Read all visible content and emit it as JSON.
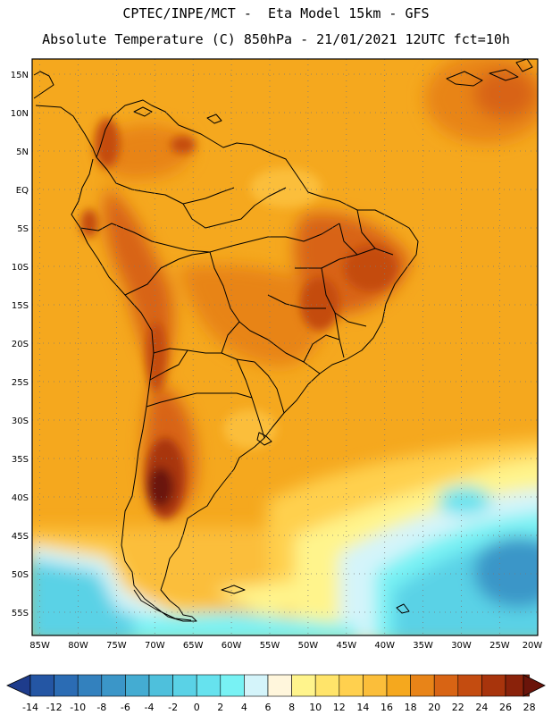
{
  "header": {
    "line1": "CPTEC/INPE/MCT -  Eta Model 15km - GFS",
    "line2": "Absolute Temperature (C) 850hPa - 21/01/2021 12UTC fct=10h"
  },
  "map": {
    "lat_labels": [
      "15N",
      "10N",
      "5N",
      "EQ",
      "5S",
      "10S",
      "15S",
      "20S",
      "25S",
      "30S",
      "35S",
      "40S",
      "45S",
      "50S",
      "55S"
    ],
    "lon_labels": [
      "85W",
      "80W",
      "75W",
      "70W",
      "65W",
      "60W",
      "55W",
      "50W",
      "45W",
      "40W",
      "35W",
      "30W",
      "25W",
      "20W"
    ]
  },
  "colorbar": {
    "labels": [
      "-14",
      "-12",
      "-10",
      "-8",
      "-6",
      "-4",
      "-2",
      "0",
      "2",
      "4",
      "6",
      "8",
      "10",
      "12",
      "14",
      "16",
      "18",
      "20",
      "22",
      "24",
      "26",
      "28"
    ],
    "colors": [
      "#1e3c8c",
      "#2456a4",
      "#2b6cb4",
      "#3381be",
      "#3b96c8",
      "#44acd2",
      "#4ec0dc",
      "#5ad2e6",
      "#66e2ee",
      "#78f2f4",
      "#d4f4fa",
      "#fff6dc",
      "#fff48c",
      "#ffe46a",
      "#ffd04e",
      "#fbbe3a",
      "#f5a81e",
      "#e88418",
      "#d86414",
      "#c44c10",
      "#a8340c",
      "#8a220a",
      "#6a140a"
    ]
  }
}
